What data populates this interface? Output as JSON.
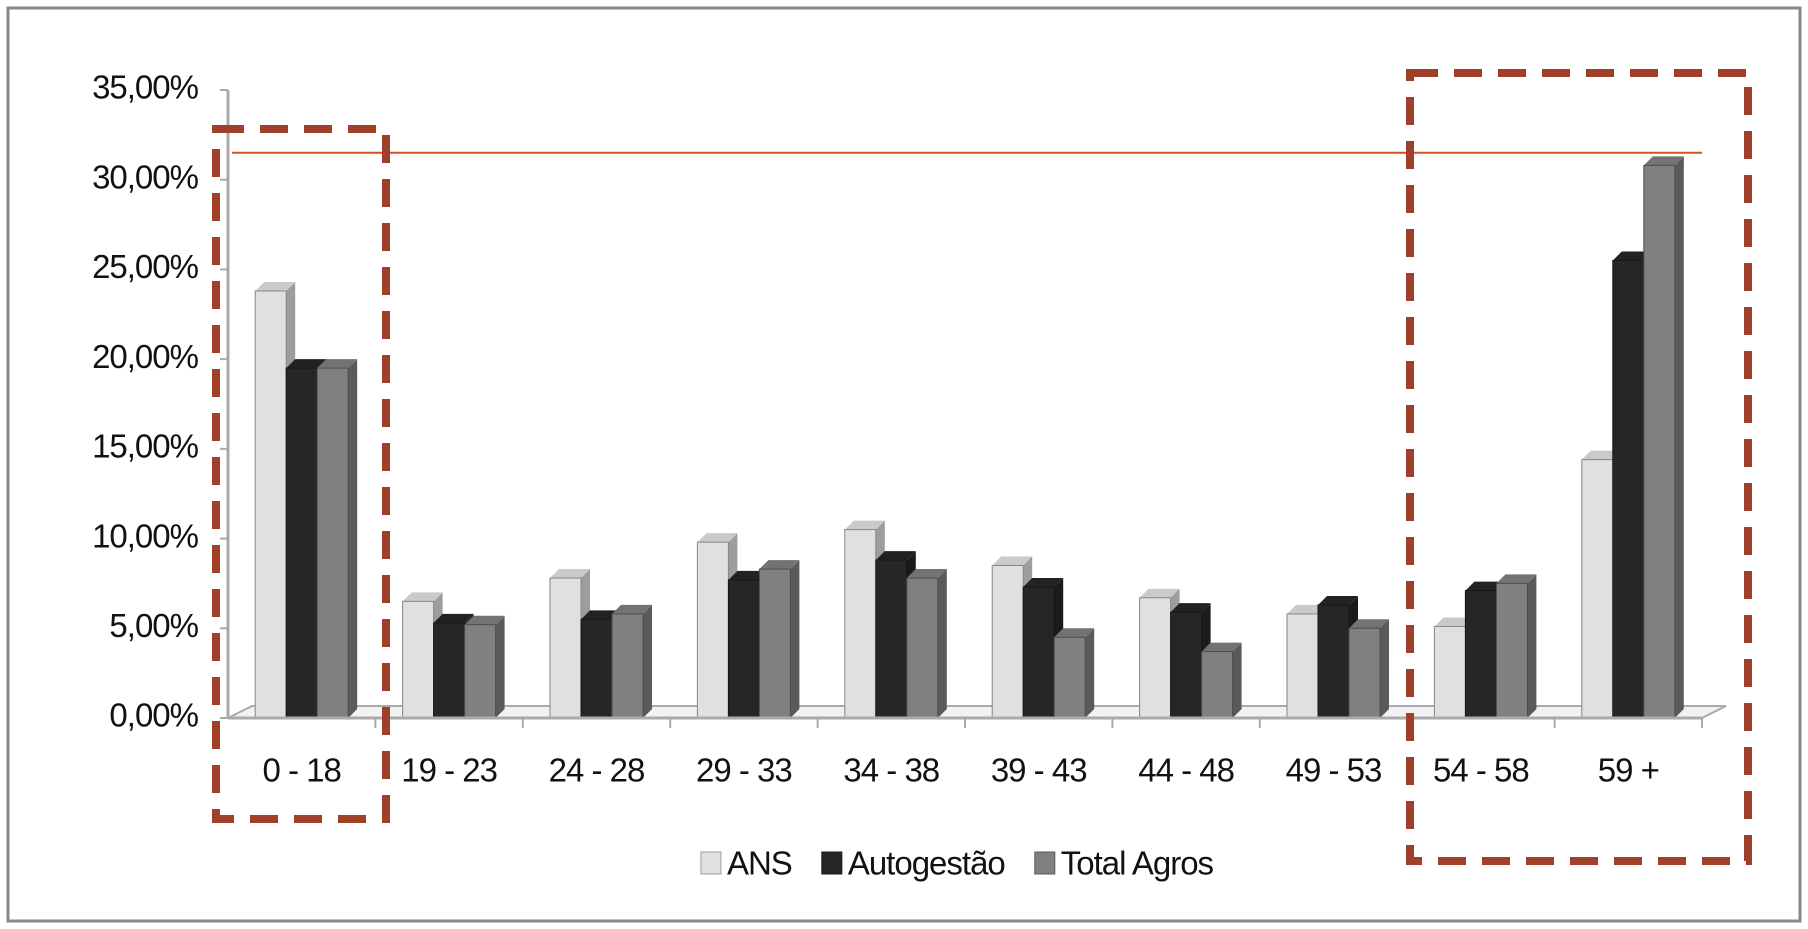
{
  "chart_data": {
    "type": "bar",
    "categories": [
      "0 - 18",
      "19 - 23",
      "24 - 28",
      "29 - 33",
      "34 - 38",
      "39 - 43",
      "44 - 48",
      "49 - 53",
      "54 - 58",
      "59 +"
    ],
    "series": [
      {
        "name": "ANS",
        "color": "#e0e0e0",
        "values": [
          23.8,
          6.5,
          7.8,
          9.8,
          10.5,
          8.5,
          6.7,
          5.8,
          5.1,
          14.4
        ]
      },
      {
        "name": "Autogestão",
        "color": "#262626",
        "values": [
          19.5,
          5.3,
          5.5,
          7.7,
          8.8,
          7.3,
          5.9,
          6.3,
          7.1,
          25.5
        ]
      },
      {
        "name": "Total Agros",
        "color": "#808080",
        "values": [
          19.5,
          5.2,
          5.8,
          8.3,
          7.8,
          4.5,
          3.7,
          5.0,
          7.5,
          30.8
        ]
      }
    ],
    "ylim": [
      0,
      35
    ],
    "yticks": [
      {
        "value": 0,
        "label": "0,00%"
      },
      {
        "value": 5,
        "label": "5,00%"
      },
      {
        "value": 10,
        "label": "10,00%"
      },
      {
        "value": 15,
        "label": "15,00%"
      },
      {
        "value": 20,
        "label": "20,00%"
      },
      {
        "value": 25,
        "label": "25,00%"
      },
      {
        "value": 30,
        "label": "30,00%"
      },
      {
        "value": 35,
        "label": "35,00%"
      }
    ],
    "reference_line": {
      "value": 31.5,
      "color": "#d0541c"
    },
    "legend": "bottom"
  }
}
